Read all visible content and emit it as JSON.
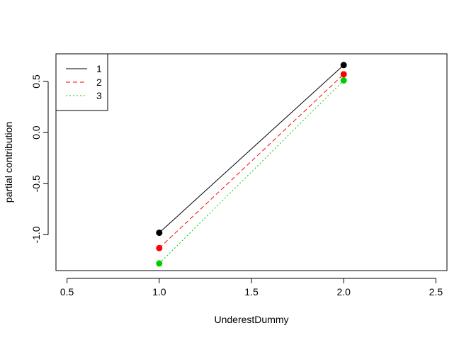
{
  "chart_data": {
    "type": "line",
    "title": "",
    "xlabel": "UnderestDummy",
    "ylabel": "partial contribution",
    "xlim": [
      0.44,
      2.56
    ],
    "ylim": [
      -1.35,
      0.77
    ],
    "x_ticks": [
      "0.5",
      "1.0",
      "1.5",
      "2.0",
      "2.5"
    ],
    "y_ticks": [
      "-1.0",
      "-0.5",
      "0.0",
      "0.5"
    ],
    "x": [
      1.0,
      2.0
    ],
    "series": [
      {
        "name": "1",
        "values": [
          -0.98,
          0.66
        ],
        "color": "#000000",
        "line_style": "solid"
      },
      {
        "name": "2",
        "values": [
          -1.13,
          0.57
        ],
        "color": "#ff0000",
        "line_style": "dashed"
      },
      {
        "name": "3",
        "values": [
          -1.28,
          0.51
        ],
        "color": "#00cd00",
        "line_style": "dotted"
      }
    ],
    "legend_position": "top-left",
    "grid": false
  }
}
